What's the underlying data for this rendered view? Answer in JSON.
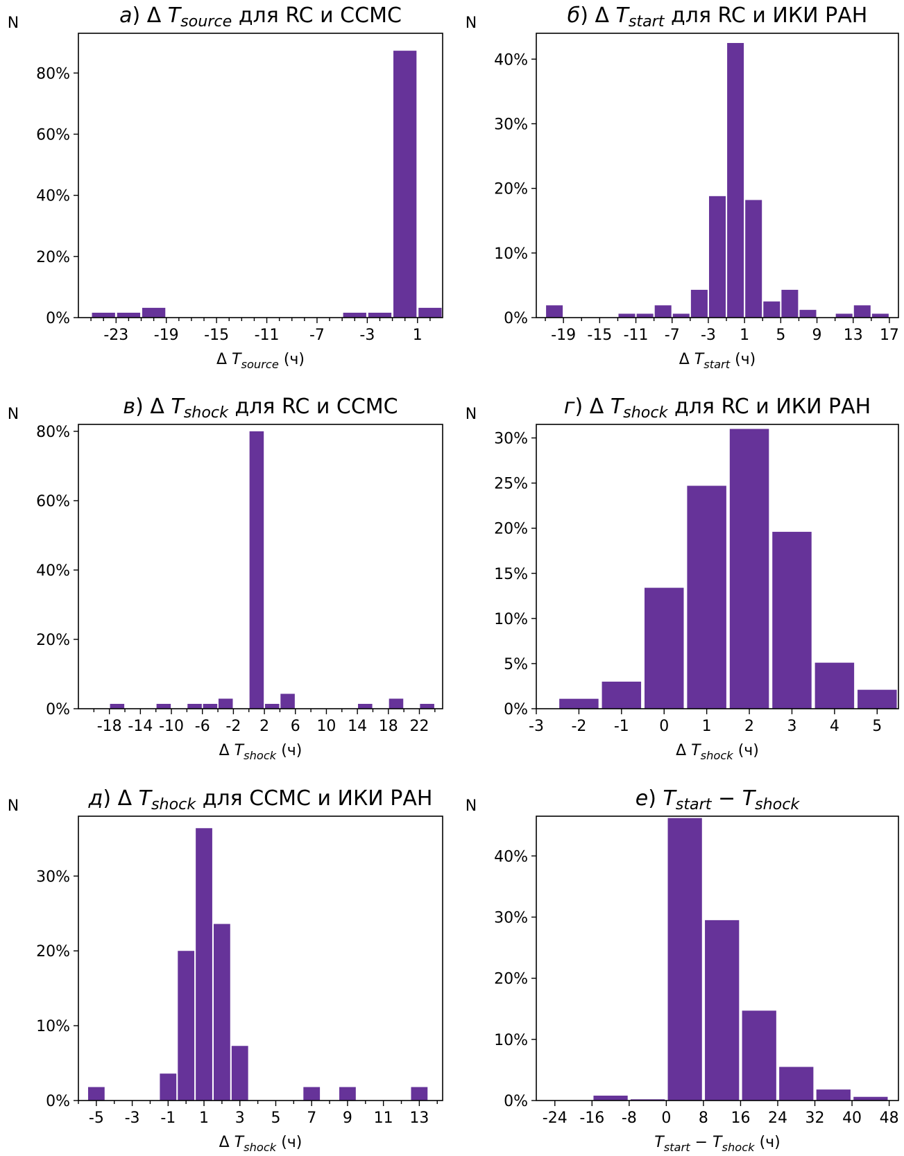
{
  "figure": {
    "bar_color": "#663399"
  },
  "chart_data": [
    {
      "type": "bar",
      "panel": "а",
      "title_letter": "а)",
      "title_parts": [
        [
          "Δ ",
          "n"
        ],
        [
          "T",
          "i"
        ],
        [
          "source",
          "is"
        ],
        [
          " для RC и CCMC",
          "n"
        ]
      ],
      "xlabel_parts": [
        [
          "Δ ",
          "n"
        ],
        [
          "T",
          "i"
        ],
        [
          "source",
          "is"
        ],
        [
          " (ч)",
          "n"
        ]
      ],
      "ylabel": "N",
      "xlim": [
        -26,
        3
      ],
      "ylim": [
        0,
        93
      ],
      "xticks": [
        -23,
        -19,
        -15,
        -11,
        -7,
        -3,
        1
      ],
      "minor_xticks": [
        -25,
        -24,
        -22,
        -21,
        -20,
        -18,
        -17,
        -16,
        -14,
        -13,
        -12,
        -10,
        -9,
        -8,
        -6,
        -5,
        -4,
        -2,
        -1,
        0,
        2
      ],
      "yticks": [
        0,
        20,
        40,
        60,
        80
      ],
      "ytick_labels": [
        "0%",
        "20%",
        "40%",
        "60%",
        "80%"
      ],
      "bin_width": 2,
      "bar_centers": [
        -24,
        -22,
        -20,
        -18,
        -16,
        -14,
        -12,
        -10,
        -8,
        -6,
        -4,
        -2,
        0,
        2
      ],
      "values": [
        1.6,
        1.6,
        3.2,
        0,
        0,
        0,
        0,
        0,
        0,
        0,
        1.6,
        1.6,
        87.3,
        3.2
      ]
    },
    {
      "type": "bar",
      "panel": "б",
      "title_letter": "б)",
      "title_parts": [
        [
          "Δ ",
          "n"
        ],
        [
          "T",
          "i"
        ],
        [
          "start",
          "is"
        ],
        [
          " для RC и ИКИ РАН",
          "n"
        ]
      ],
      "xlabel_parts": [
        [
          "Δ ",
          "n"
        ],
        [
          "T",
          "i"
        ],
        [
          "start",
          "is"
        ],
        [
          " (ч)",
          "n"
        ]
      ],
      "ylabel": "N",
      "xlim": [
        -22,
        18
      ],
      "ylim": [
        0,
        44
      ],
      "xticks": [
        -19,
        -15,
        -11,
        -7,
        -3,
        1,
        5,
        9,
        13,
        17
      ],
      "minor_xticks": [
        -21,
        -17,
        -13,
        -9,
        -5,
        -1,
        3,
        7,
        11,
        15
      ],
      "yticks": [
        0,
        10,
        20,
        30,
        40
      ],
      "ytick_labels": [
        "0%",
        "10%",
        "20%",
        "30%",
        "40%"
      ],
      "bin_width": 2,
      "bar_centers": [
        -20,
        -18,
        -16,
        -14,
        -12,
        -10,
        -8,
        -6,
        -4,
        -2,
        0,
        2,
        4,
        6,
        8,
        10,
        12,
        14,
        16
      ],
      "values": [
        1.9,
        0,
        0,
        0,
        0.6,
        0.6,
        1.9,
        0.6,
        4.3,
        18.8,
        42.5,
        18.2,
        2.5,
        4.3,
        1.2,
        0,
        0.6,
        1.9,
        0.6
      ]
    },
    {
      "type": "bar",
      "panel": "в",
      "title_letter": "в)",
      "title_parts": [
        [
          "Δ ",
          "n"
        ],
        [
          "T",
          "i"
        ],
        [
          "shock",
          "is"
        ],
        [
          " для RC и CCMC",
          "n"
        ]
      ],
      "xlabel_parts": [
        [
          "Δ ",
          "n"
        ],
        [
          "T",
          "i"
        ],
        [
          "shock",
          "is"
        ],
        [
          " (ч)",
          "n"
        ]
      ],
      "ylabel": "N",
      "xlim": [
        -22,
        25
      ],
      "ylim": [
        0,
        82
      ],
      "xticks": [
        -18,
        -14,
        -10,
        -6,
        -2,
        2,
        6,
        10,
        14,
        18,
        22
      ],
      "minor_xticks": [
        -20,
        -16,
        -12,
        -8,
        -4,
        0,
        4,
        8,
        12,
        16,
        20,
        24
      ],
      "yticks": [
        0,
        20,
        40,
        60,
        80
      ],
      "ytick_labels": [
        "0%",
        "20%",
        "40%",
        "60%",
        "80%"
      ],
      "bin_width": 2,
      "bar_centers": [
        -19,
        -17,
        -15,
        -13,
        -11,
        -9,
        -7,
        -5,
        -3,
        -1,
        1,
        3,
        5,
        7,
        9,
        11,
        13,
        15,
        17,
        19,
        21,
        23
      ],
      "values": [
        0,
        1.4,
        0,
        0,
        1.4,
        0,
        1.4,
        1.4,
        2.9,
        0,
        80,
        1.4,
        4.3,
        0,
        0,
        0,
        0,
        1.4,
        0,
        2.9,
        0,
        1.4
      ]
    },
    {
      "type": "bar",
      "panel": "г",
      "title_letter": "г)",
      "title_parts": [
        [
          "Δ ",
          "n"
        ],
        [
          "T",
          "i"
        ],
        [
          "shock",
          "is"
        ],
        [
          " для RC и ИКИ РАН",
          "n"
        ]
      ],
      "xlabel_parts": [
        [
          "Δ ",
          "n"
        ],
        [
          "T",
          "i"
        ],
        [
          "shock",
          "is"
        ],
        [
          " (ч)",
          "n"
        ]
      ],
      "ylabel": "N",
      "xlim": [
        -3,
        5.5
      ],
      "ylim": [
        0,
        31.5
      ],
      "xticks": [
        -3,
        -2,
        -1,
        0,
        1,
        2,
        3,
        4,
        5
      ],
      "minor_xticks": [],
      "yticks": [
        0,
        5,
        10,
        15,
        20,
        25,
        30
      ],
      "ytick_labels": [
        "0%",
        "5%",
        "10%",
        "15%",
        "20%",
        "25%",
        "30%"
      ],
      "bin_width": 1,
      "bar_centers": [
        -2,
        -1,
        0,
        1,
        2,
        3,
        4,
        5
      ],
      "values": [
        1.1,
        3.0,
        13.4,
        24.7,
        31.0,
        19.6,
        5.1,
        2.1
      ]
    },
    {
      "type": "bar",
      "panel": "д",
      "title_letter": "д)",
      "title_parts": [
        [
          "Δ ",
          "n"
        ],
        [
          "T",
          "i"
        ],
        [
          "shock",
          "is"
        ],
        [
          " для CCMC и ИКИ РАН",
          "n"
        ]
      ],
      "xlabel_parts": [
        [
          "Δ ",
          "n"
        ],
        [
          "T",
          "i"
        ],
        [
          "shock",
          "is"
        ],
        [
          " (ч)",
          "n"
        ]
      ],
      "ylabel": "N",
      "xlim": [
        -6,
        14.3
      ],
      "ylim": [
        0,
        38
      ],
      "xticks": [
        -5,
        -3,
        -1,
        1,
        3,
        5,
        7,
        9,
        11,
        13
      ],
      "minor_xticks": [
        -6,
        -4,
        -2,
        0,
        2,
        4,
        6,
        8,
        10,
        12,
        14
      ],
      "yticks": [
        0,
        10,
        20,
        30
      ],
      "ytick_labels": [
        "0%",
        "10%",
        "20%",
        "30%"
      ],
      "bin_width": 1,
      "bar_centers": [
        -5,
        -4,
        -3,
        -2,
        -1,
        0,
        1,
        2,
        3,
        4,
        5,
        6,
        7,
        8,
        9,
        10,
        11,
        12,
        13
      ],
      "values": [
        1.8,
        0,
        0,
        0,
        3.6,
        20.0,
        36.4,
        23.6,
        7.3,
        0,
        0,
        0,
        1.8,
        0,
        1.8,
        0,
        0,
        0,
        1.8
      ]
    },
    {
      "type": "bar",
      "panel": "е",
      "title_letter": "е)",
      "title_parts": [
        [
          "T",
          "i"
        ],
        [
          "start",
          "is"
        ],
        [
          " − ",
          "n"
        ],
        [
          "T",
          "i"
        ],
        [
          "shock",
          "is"
        ]
      ],
      "xlabel_parts": [
        [
          "T",
          "i"
        ],
        [
          "start",
          "is"
        ],
        [
          " − ",
          "n"
        ],
        [
          "T",
          "i"
        ],
        [
          "shock",
          "is"
        ],
        [
          " (ч)",
          "n"
        ]
      ],
      "ylabel": "N",
      "xlim": [
        -28,
        50
      ],
      "ylim": [
        0,
        46.5
      ],
      "xticks": [
        -24,
        -16,
        -8,
        0,
        8,
        16,
        24,
        32,
        40,
        48
      ],
      "minor_xticks": [],
      "yticks": [
        0,
        10,
        20,
        30,
        40
      ],
      "ytick_labels": [
        "0%",
        "10%",
        "20%",
        "30%",
        "40%"
      ],
      "bin_width": 8,
      "bar_centers": [
        -20,
        -12,
        -4,
        4,
        12,
        20,
        28,
        36,
        44
      ],
      "values": [
        0,
        0.8,
        0.2,
        46.2,
        29.5,
        14.7,
        5.5,
        1.8,
        0.6
      ]
    }
  ]
}
